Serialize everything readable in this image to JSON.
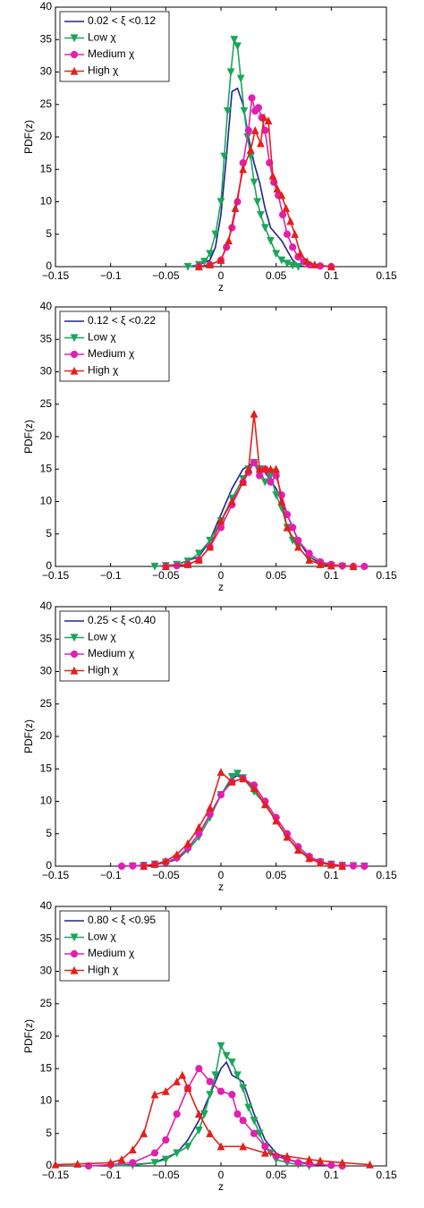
{
  "chart_data": [
    {
      "type": "line",
      "xlabel": "z",
      "ylabel": "PDF(z)",
      "legend": "upper left",
      "grid": false,
      "xlim": [
        -0.15,
        0.15
      ],
      "ylim": [
        0,
        40
      ],
      "xticks": [
        {
          "value": -0.15,
          "label": "−0.15"
        },
        {
          "value": -0.1,
          "label": "−0.1"
        },
        {
          "value": -0.05,
          "label": "−0.05"
        },
        0,
        0.05,
        0.1,
        0.15
      ],
      "yticks": [
        0,
        5,
        10,
        15,
        20,
        25,
        30,
        35,
        40
      ],
      "series": [
        {
          "name": "0.02 < ξ <0.12",
          "color": "#23238a",
          "marker": "none",
          "x": [
            -0.03,
            -0.02,
            -0.01,
            -0.005,
            0,
            0.005,
            0.01,
            0.015,
            0.02,
            0.025,
            0.03,
            0.035,
            0.04,
            0.045,
            0.05,
            0.055,
            0.06,
            0.065,
            0.07,
            0.075
          ],
          "values": [
            0,
            0.3,
            1,
            3,
            8,
            17,
            27,
            27.5,
            25,
            20,
            16,
            13,
            9,
            6,
            5,
            4,
            2.5,
            1,
            0.3,
            0
          ]
        },
        {
          "name": "Low χ",
          "color": "#1ba65a",
          "marker": "triangle-down",
          "x": [
            -0.03,
            -0.02,
            -0.015,
            -0.01,
            -0.005,
            0,
            0.003,
            0.006,
            0.009,
            0.012,
            0.015,
            0.018,
            0.021,
            0.024,
            0.027,
            0.03,
            0.033,
            0.036,
            0.04,
            0.045,
            0.05,
            0.055,
            0.06,
            0.065,
            0.07
          ],
          "values": [
            0,
            0.3,
            0.8,
            2,
            5,
            10,
            17,
            24,
            30,
            35,
            34,
            29,
            24,
            20,
            17,
            13,
            10,
            8,
            6,
            4,
            2,
            1,
            0.5,
            0.2,
            0
          ]
        },
        {
          "name": "Medium χ",
          "color": "#e020b0",
          "marker": "circle",
          "x": [
            -0.02,
            -0.01,
            0,
            0.005,
            0.01,
            0.015,
            0.02,
            0.025,
            0.028,
            0.031,
            0.034,
            0.037,
            0.04,
            0.044,
            0.048,
            0.052,
            0.056,
            0.06,
            0.065,
            0.07,
            0.075,
            0.08,
            0.09,
            0.1
          ],
          "values": [
            0,
            0.3,
            1,
            3,
            6,
            10,
            16,
            21,
            26,
            24,
            24.5,
            23,
            21,
            16,
            13,
            11,
            8,
            5,
            3,
            1.5,
            0.8,
            0.3,
            0.1,
            0
          ]
        },
        {
          "name": "High χ",
          "color": "#e3201b",
          "marker": "triangle-up",
          "x": [
            -0.02,
            -0.01,
            0,
            0.007,
            0.013,
            0.02,
            0.027,
            0.031,
            0.036,
            0.039,
            0.043,
            0.047,
            0.051,
            0.055,
            0.059,
            0.063,
            0.067,
            0.072,
            0.078,
            0.085,
            0.1
          ],
          "values": [
            0,
            0.3,
            1,
            4,
            9,
            15,
            18,
            21,
            19,
            23,
            22.5,
            14,
            12,
            11,
            9,
            7,
            5,
            2,
            0.8,
            0.3,
            0
          ]
        }
      ]
    },
    {
      "type": "line",
      "xlabel": "z",
      "ylabel": "PDF(z)",
      "legend": "upper left",
      "grid": false,
      "xlim": [
        -0.15,
        0.15
      ],
      "ylim": [
        0,
        40
      ],
      "xticks": [
        {
          "value": -0.15,
          "label": "−0.15"
        },
        {
          "value": -0.1,
          "label": "−0.1"
        },
        {
          "value": -0.05,
          "label": "−0.05"
        },
        0,
        0.05,
        0.1,
        0.15
      ],
      "yticks": [
        0,
        5,
        10,
        15,
        20,
        25,
        30,
        35,
        40
      ],
      "series": [
        {
          "name": "0.12 < ξ <0.22",
          "color": "#23238a",
          "marker": "none",
          "x": [
            -0.06,
            -0.04,
            -0.02,
            -0.01,
            0,
            0.01,
            0.02,
            0.03,
            0.04,
            0.05,
            0.06,
            0.07,
            0.08,
            0.09,
            0.1,
            0.12
          ],
          "values": [
            0,
            0.3,
            1.5,
            4,
            8,
            12,
            15,
            16,
            14.5,
            12,
            8,
            4,
            1.5,
            0.5,
            0.2,
            0
          ]
        },
        {
          "name": "Low χ",
          "color": "#1ba65a",
          "marker": "triangle-down",
          "x": [
            -0.06,
            -0.05,
            -0.04,
            -0.03,
            -0.02,
            -0.01,
            0,
            0.01,
            0.02,
            0.025,
            0.03,
            0.035,
            0.04,
            0.045,
            0.05,
            0.055,
            0.06,
            0.065,
            0.07,
            0.08,
            0.09,
            0.1,
            0.11
          ],
          "values": [
            0,
            0.1,
            0.3,
            0.8,
            2,
            4,
            7,
            10.5,
            13.5,
            15,
            16,
            15,
            13,
            14,
            11,
            9,
            6,
            4,
            3,
            1,
            0.4,
            0.1,
            0
          ]
        },
        {
          "name": "Medium χ",
          "color": "#e020b0",
          "marker": "circle",
          "x": [
            -0.05,
            -0.04,
            -0.03,
            -0.02,
            -0.01,
            0,
            0.01,
            0.02,
            0.025,
            0.03,
            0.035,
            0.04,
            0.045,
            0.05,
            0.055,
            0.06,
            0.065,
            0.07,
            0.08,
            0.09,
            0.1,
            0.11,
            0.12,
            0.13
          ],
          "values": [
            0,
            0.1,
            0.3,
            1,
            3,
            6,
            9.5,
            13,
            14.5,
            16,
            14,
            15,
            13,
            14,
            11,
            8,
            6,
            4,
            2,
            0.7,
            0.3,
            0.1,
            0,
            0
          ]
        },
        {
          "name": "High χ",
          "color": "#e3201b",
          "marker": "triangle-up",
          "x": [
            -0.05,
            -0.03,
            -0.02,
            -0.01,
            0,
            0.01,
            0.02,
            0.025,
            0.03,
            0.035,
            0.04,
            0.045,
            0.05,
            0.055,
            0.06,
            0.07,
            0.08,
            0.09,
            0.1,
            0.12
          ],
          "values": [
            0,
            0.3,
            1,
            3,
            7,
            10,
            13,
            15,
            23.5,
            15,
            15,
            15,
            15,
            10,
            6,
            3,
            1,
            0.3,
            0.1,
            0
          ]
        }
      ]
    },
    {
      "type": "line",
      "xlabel": "z",
      "ylabel": "PDF(z)",
      "legend": "upper left",
      "grid": false,
      "xlim": [
        -0.15,
        0.15
      ],
      "ylim": [
        0,
        40
      ],
      "xticks": [
        {
          "value": -0.15,
          "label": "−0.15"
        },
        {
          "value": -0.1,
          "label": "−0.1"
        },
        {
          "value": -0.05,
          "label": "−0.05"
        },
        0,
        0.05,
        0.1,
        0.15
      ],
      "yticks": [
        0,
        5,
        10,
        15,
        20,
        25,
        30,
        35,
        40
      ],
      "series": [
        {
          "name": "0.25 < ξ <0.40",
          "color": "#23238a",
          "marker": "none",
          "x": [
            -0.09,
            -0.06,
            -0.04,
            -0.03,
            -0.02,
            -0.01,
            0,
            0.01,
            0.015,
            0.02,
            0.03,
            0.04,
            0.05,
            0.06,
            0.07,
            0.08,
            0.09,
            0.1,
            0.13
          ],
          "values": [
            0,
            0.2,
            1,
            2.5,
            4.5,
            7.5,
            11,
            13.5,
            14,
            13.5,
            12,
            9.5,
            7,
            4.5,
            2.5,
            1.2,
            0.5,
            0.2,
            0
          ]
        },
        {
          "name": "Low χ",
          "color": "#1ba65a",
          "marker": "triangle-down",
          "x": [
            -0.08,
            -0.07,
            -0.06,
            -0.05,
            -0.04,
            -0.03,
            -0.02,
            -0.01,
            0,
            0.01,
            0.015,
            0.02,
            0.03,
            0.04,
            0.05,
            0.06,
            0.07,
            0.08,
            0.09,
            0.1,
            0.11,
            0.12,
            0.13
          ],
          "values": [
            0,
            0.1,
            0.3,
            0.6,
            1.2,
            2.5,
            4.5,
            7.5,
            11,
            13.8,
            14.3,
            13.6,
            11.5,
            9.5,
            7,
            4.5,
            2.6,
            1.3,
            0.6,
            0.3,
            0.1,
            0.05,
            0
          ]
        },
        {
          "name": "Medium χ",
          "color": "#e020b0",
          "marker": "circle",
          "x": [
            -0.09,
            -0.08,
            -0.07,
            -0.06,
            -0.05,
            -0.04,
            -0.03,
            -0.02,
            -0.01,
            0,
            0.01,
            0.02,
            0.03,
            0.04,
            0.05,
            0.06,
            0.07,
            0.08,
            0.09,
            0.1,
            0.11,
            0.12,
            0.13
          ],
          "values": [
            0,
            0.05,
            0.1,
            0.3,
            0.6,
            1.3,
            2.8,
            5,
            8,
            11,
            13,
            13.5,
            12.5,
            10,
            7.5,
            5,
            3,
            1.5,
            0.7,
            0.3,
            0.1,
            0.05,
            0
          ]
        },
        {
          "name": "High χ",
          "color": "#e3201b",
          "marker": "triangle-up",
          "x": [
            -0.07,
            -0.06,
            -0.05,
            -0.04,
            -0.03,
            -0.02,
            -0.01,
            0,
            0.01,
            0.02,
            0.03,
            0.04,
            0.05,
            0.06,
            0.07,
            0.08,
            0.09,
            0.1,
            0.11
          ],
          "values": [
            0,
            0.3,
            0.8,
            1.8,
            3.5,
            6,
            9,
            14.5,
            13,
            13.5,
            12,
            9.5,
            7,
            4.5,
            2.5,
            1.2,
            0.5,
            0.2,
            0
          ]
        }
      ]
    },
    {
      "type": "line",
      "xlabel": "z",
      "ylabel": "PDF(z)",
      "legend": "upper left",
      "grid": false,
      "xlim": [
        -0.15,
        0.15
      ],
      "ylim": [
        0,
        40
      ],
      "xticks": [
        {
          "value": -0.15,
          "label": "−0.15"
        },
        {
          "value": -0.1,
          "label": "−0.1"
        },
        {
          "value": -0.05,
          "label": "−0.05"
        },
        0,
        0.05,
        0.1,
        0.15
      ],
      "yticks": [
        0,
        5,
        10,
        15,
        20,
        25,
        30,
        35,
        40
      ],
      "series": [
        {
          "name": "0.80 < ξ <0.95",
          "color": "#23238a",
          "marker": "none",
          "x": [
            -0.1,
            -0.08,
            -0.06,
            -0.04,
            -0.03,
            -0.02,
            -0.01,
            0,
            0.005,
            0.01,
            0.02,
            0.03,
            0.04,
            0.05,
            0.06,
            0.08,
            0.1
          ],
          "values": [
            0,
            0.2,
            0.5,
            2,
            4,
            7,
            11,
            15,
            16,
            14,
            13,
            8,
            4,
            2,
            1,
            0.3,
            0
          ]
        },
        {
          "name": "Low χ",
          "color": "#1ba65a",
          "marker": "triangle-down",
          "x": [
            -0.1,
            -0.08,
            -0.06,
            -0.05,
            -0.04,
            -0.03,
            -0.02,
            -0.015,
            -0.01,
            -0.005,
            0,
            0.005,
            0.01,
            0.015,
            0.02,
            0.025,
            0.03,
            0.035,
            0.04,
            0.045,
            0.05,
            0.06,
            0.07,
            0.08
          ],
          "values": [
            0,
            0.1,
            0.5,
            1,
            2,
            3,
            5.5,
            8,
            11,
            14,
            18.5,
            17,
            16,
            14,
            12,
            9,
            7,
            5,
            3,
            2,
            1,
            0.5,
            0.2,
            0
          ]
        },
        {
          "name": "Medium χ",
          "color": "#e020b0",
          "marker": "circle",
          "x": [
            -0.12,
            -0.1,
            -0.08,
            -0.06,
            -0.05,
            -0.04,
            -0.03,
            -0.02,
            -0.01,
            0,
            0.01,
            0.015,
            0.02,
            0.03,
            0.04,
            0.05,
            0.06,
            0.07,
            0.08,
            0.1,
            0.11
          ],
          "values": [
            0,
            0.2,
            0.5,
            2,
            4,
            8,
            12,
            15,
            13,
            11.5,
            11,
            8,
            7,
            5,
            3,
            1.5,
            1,
            0.5,
            0.3,
            0.1,
            0
          ]
        },
        {
          "name": "High χ",
          "color": "#e3201b",
          "marker": "triangle-up",
          "x": [
            -0.15,
            -0.13,
            -0.1,
            -0.09,
            -0.08,
            -0.07,
            -0.06,
            -0.05,
            -0.04,
            -0.035,
            -0.03,
            -0.02,
            -0.01,
            0,
            0.02,
            0.04,
            0.06,
            0.08,
            0.09,
            0.11,
            0.135
          ],
          "values": [
            0.2,
            0.3,
            0.5,
            1,
            2.5,
            5,
            11,
            11.5,
            13,
            14,
            12,
            8,
            5,
            3,
            3,
            2,
            1.5,
            1,
            0.8,
            0.5,
            0.2
          ]
        }
      ]
    }
  ]
}
